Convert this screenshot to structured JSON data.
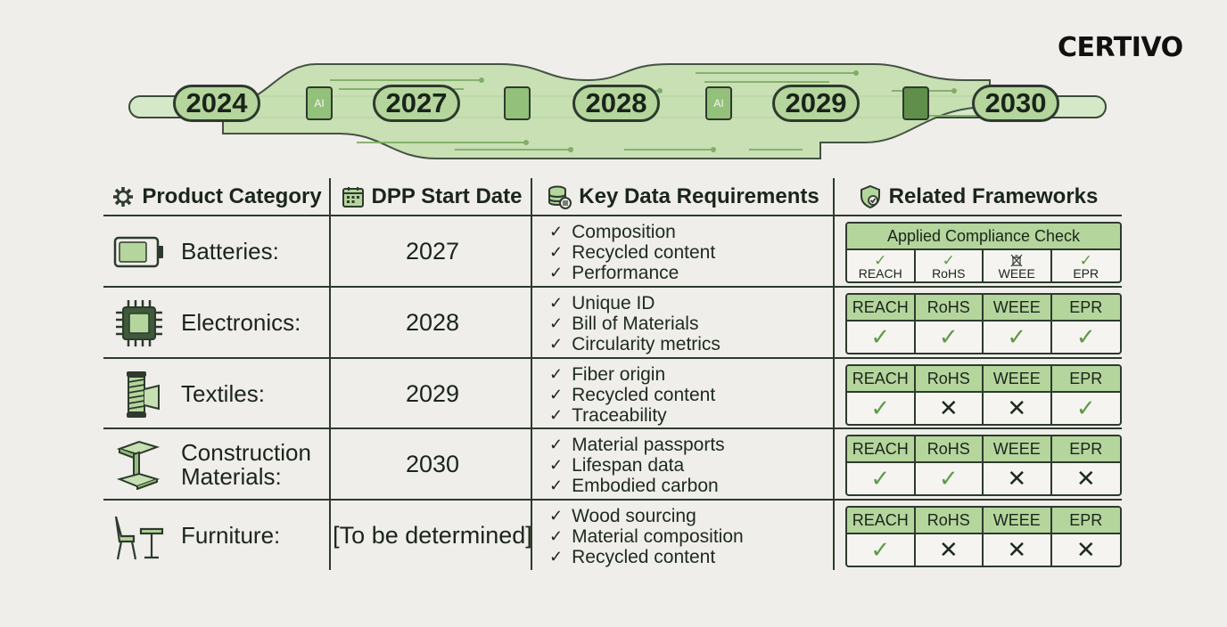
{
  "brand": {
    "logo": "CERTIVO"
  },
  "timeline": {
    "years": [
      "2024",
      "2027",
      "2028",
      "2029",
      "2030"
    ],
    "chip_label": "AI"
  },
  "table": {
    "headers": {
      "category": "Product Category",
      "date": "DPP Start Date",
      "requirements": "Key Data Requirements",
      "frameworks": "Related Frameworks"
    },
    "framework_columns": [
      "REACH",
      "RoHS",
      "WEEE",
      "EPR"
    ],
    "compliance_box_title": "Applied Compliance Check",
    "rows": [
      {
        "category": "Batteries:",
        "icon": "battery-icon",
        "date": "2027",
        "requirements": [
          "Composition",
          "Recycled content",
          "Performance"
        ],
        "frameworks": [
          "check",
          "check",
          "crossed-bin",
          "check"
        ]
      },
      {
        "category": "Electronics:",
        "icon": "microchip-icon",
        "date": "2028",
        "requirements": [
          "Unique ID",
          "Bill of Materials",
          "Circularity metrics"
        ],
        "frameworks": [
          "check",
          "check",
          "check",
          "check"
        ]
      },
      {
        "category": "Textiles:",
        "icon": "thread-spool-icon",
        "date": "2029",
        "requirements": [
          "Fiber origin",
          "Recycled content",
          "Traceability"
        ],
        "frameworks": [
          "check",
          "cross",
          "cross",
          "check"
        ]
      },
      {
        "category": "Construction Materials:",
        "icon": "steel-beam-icon",
        "date": "2030",
        "requirements": [
          "Material passports",
          "Lifespan data",
          "Embodied carbon"
        ],
        "frameworks": [
          "check",
          "check",
          "cross",
          "cross"
        ]
      },
      {
        "category": "Furniture:",
        "icon": "chair-table-icon",
        "date": "[To be determined]",
        "requirements": [
          "Wood sourcing",
          "Material composition",
          "Recycled content"
        ],
        "frameworks": [
          "check",
          "cross",
          "cross",
          "cross"
        ]
      }
    ]
  },
  "colors": {
    "accent_green": "#b4d59c",
    "check_green": "#5c9a44",
    "line": "#2d3a2d",
    "background": "#efeeea"
  }
}
